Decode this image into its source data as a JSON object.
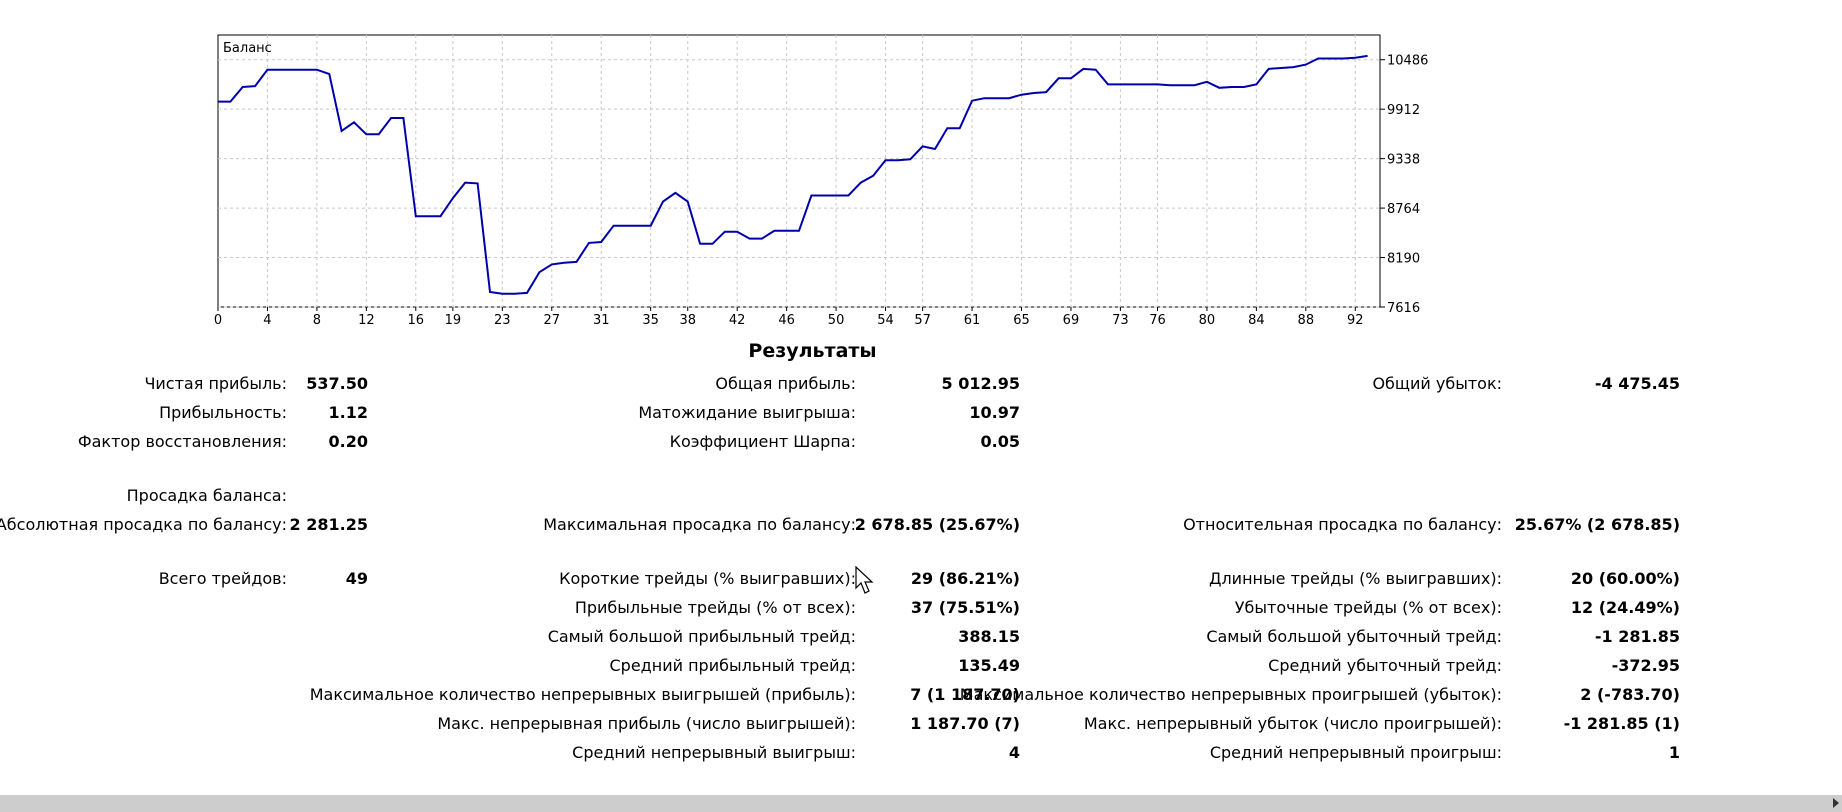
{
  "chart_data": {
    "type": "line",
    "title": "Баланс",
    "xlabel": "",
    "ylabel": "",
    "x_ticks": [
      "0",
      "4",
      "8",
      "12",
      "16",
      "19",
      "23",
      "27",
      "31",
      "35",
      "38",
      "42",
      "46",
      "50",
      "54",
      "57",
      "61",
      "65",
      "69",
      "73",
      "76",
      "80",
      "84",
      "88",
      "92"
    ],
    "y_ticks": [
      "10486",
      "9912",
      "9338",
      "8764",
      "8190",
      "7616"
    ],
    "xlim": [
      0,
      94
    ],
    "ylim": [
      7616,
      10773
    ],
    "grid": true,
    "series": [
      {
        "name": "Баланс",
        "color": "#0000aa",
        "x": [
          0,
          1,
          2,
          3,
          4,
          5,
          6,
          7,
          8,
          9,
          10,
          11,
          12,
          13,
          14,
          15,
          16,
          17,
          18,
          19,
          20,
          21,
          22,
          23,
          24,
          25,
          26,
          27,
          28,
          29,
          30,
          31,
          32,
          33,
          34,
          35,
          36,
          37,
          38,
          39,
          40,
          41,
          42,
          43,
          44,
          45,
          46,
          47,
          48,
          49,
          50,
          51,
          52,
          53,
          54,
          55,
          56,
          57,
          58,
          59,
          60,
          61,
          62,
          63,
          64,
          65,
          66,
          67,
          68,
          69,
          70,
          71,
          72,
          73,
          74,
          75,
          76,
          77,
          78,
          79,
          80,
          81,
          82,
          83,
          84,
          85,
          86,
          87,
          88,
          89,
          90,
          91,
          92,
          93
        ],
        "y": [
          10000,
          10000,
          10170,
          10180,
          10370,
          10370,
          10370,
          10370,
          10370,
          10320,
          9660,
          9760,
          9620,
          9620,
          9810,
          9810,
          8670,
          8670,
          8670,
          8880,
          9060,
          9050,
          7790,
          7770,
          7770,
          7780,
          8020,
          8110,
          8130,
          8140,
          8360,
          8370,
          8560,
          8560,
          8560,
          8560,
          8840,
          8940,
          8840,
          8350,
          8350,
          8490,
          8490,
          8410,
          8410,
          8500,
          8500,
          8500,
          8910,
          8910,
          8910,
          8910,
          9060,
          9140,
          9320,
          9320,
          9330,
          9480,
          9450,
          9690,
          9690,
          10010,
          10040,
          10040,
          10040,
          10080,
          10100,
          10110,
          10270,
          10270,
          10380,
          10370,
          10200,
          10200,
          10200,
          10200,
          10200,
          10190,
          10190,
          10190,
          10230,
          10160,
          10170,
          10170,
          10200,
          10380,
          10390,
          10400,
          10430,
          10500,
          10500,
          10500,
          10510,
          10530
        ]
      }
    ]
  },
  "results": {
    "title": "Результаты",
    "net_profit": {
      "label": "Чистая прибыль:",
      "value": "537.50"
    },
    "gross_profit": {
      "label": "Общая прибыль:",
      "value": "5 012.95"
    },
    "gross_loss": {
      "label": "Общий убыток:",
      "value": "-4 475.45"
    },
    "profitability": {
      "label": "Прибыльность:",
      "value": "1.12"
    },
    "expected_payoff": {
      "label": "Матожидание выигрыша:",
      "value": "10.97"
    },
    "recovery_factor": {
      "label": "Фактор восстановления:",
      "value": "0.20"
    },
    "sharpe_ratio": {
      "label": "Коэффициент Шарпа:",
      "value": "0.05"
    },
    "balance_drawdown": {
      "label": "Просадка баланса:"
    },
    "abs_drawdown": {
      "label": "Абсолютная просадка по балансу:",
      "value": "2 281.25"
    },
    "max_drawdown": {
      "label": "Максимальная просадка по балансу:",
      "value": "2 678.85 (25.67%)"
    },
    "rel_drawdown": {
      "label": "Относительная просадка по балансу:",
      "value": "25.67% (2 678.85)"
    },
    "total_trades": {
      "label": "Всего трейдов:",
      "value": "49"
    },
    "short_trades": {
      "label": "Короткие трейды (% выигравших):",
      "value": "29 (86.21%)"
    },
    "long_trades": {
      "label": "Длинные трейды (% выигравших):",
      "value": "20 (60.00%)"
    },
    "profit_trades": {
      "label": "Прибыльные трейды (% от всех):",
      "value": "37 (75.51%)"
    },
    "loss_trades": {
      "label": "Убыточные трейды (% от всех):",
      "value": "12 (24.49%)"
    },
    "largest_profit": {
      "label": "Самый большой прибыльный трейд:",
      "value": "388.15"
    },
    "largest_loss": {
      "label": "Самый большой убыточный трейд:",
      "value": "-1 281.85"
    },
    "avg_profit": {
      "label": "Средний прибыльный трейд:",
      "value": "135.49"
    },
    "avg_loss": {
      "label": "Средний убыточный трейд:",
      "value": "-372.95"
    },
    "max_consec_wins": {
      "label": "Максимальное количество непрерывных выигрышей (прибыль):",
      "value": "7 (1 187.70)"
    },
    "max_consec_losses": {
      "label": "Максимальное количество непрерывных проигрышей (убыток):",
      "value": "2 (-783.70)"
    },
    "max_consec_profit": {
      "label": "Макс. непрерывная прибыль (число выигрышей):",
      "value": "1 187.70 (7)"
    },
    "max_consec_loss": {
      "label": "Макс. непрерывный убыток (число проигрышей):",
      "value": "-1 281.85 (1)"
    },
    "avg_consec_wins": {
      "label": "Средний непрерывный выигрыш:",
      "value": "4"
    },
    "avg_consec_losses": {
      "label": "Средний непрерывный проигрыш:",
      "value": "1"
    }
  }
}
